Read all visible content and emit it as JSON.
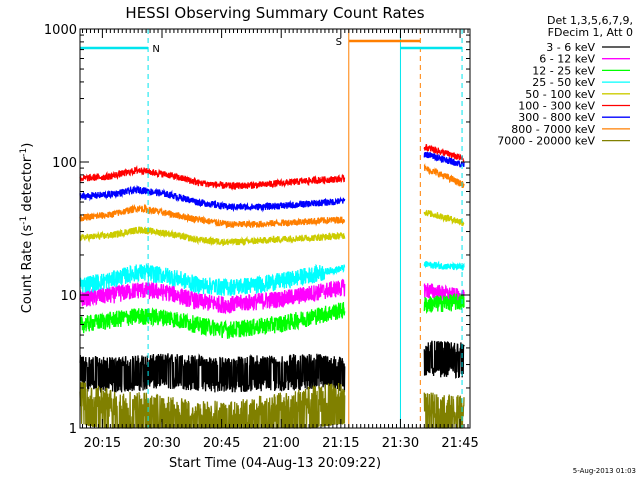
{
  "chart_data": {
    "type": "line",
    "title": "HESSI Observing Summary Count Rates",
    "xlabel": "Start Time (04-Aug-13 20:09:22)",
    "ylabel_main": "Count Rate (s",
    "ylabel_sup1": "-1",
    "ylabel_mid": " detector",
    "ylabel_sup2": "-1",
    "ylabel_end": ")",
    "footer": "5-Aug-2013 01:03",
    "y_scale": "log",
    "ylim": [
      1,
      1000
    ],
    "xlim": [
      "20:09:22",
      "21:47:30"
    ],
    "x_ticks": [
      "20:15",
      "20:30",
      "20:45",
      "21:00",
      "21:15",
      "21:30",
      "21:45"
    ],
    "y_ticks": [
      "1",
      "10",
      "100",
      "1000"
    ],
    "legend_header": [
      "Det 1,3,5,6,7,9,",
      "FDecim 1, Att 0"
    ],
    "flags": [
      {
        "label": "N",
        "color": "#00e5ee",
        "segments": [
          [
            "20:09:22",
            "20:26:30"
          ],
          [
            "21:30:00",
            "21:45:30"
          ]
        ]
      },
      {
        "label": "S",
        "color": "#ff7f00",
        "segments": [
          [
            "21:17:00",
            "21:35:00"
          ]
        ]
      }
    ],
    "vlines": [
      {
        "time": "20:26:30",
        "color": "#00e5ee",
        "style": "dashed"
      },
      {
        "time": "21:45:30",
        "color": "#00e5ee",
        "style": "dashed"
      },
      {
        "time": "21:30:00",
        "color": "#00e5ee",
        "style": "solid"
      },
      {
        "time": "21:17:00",
        "color": "#ff7f00",
        "style": "solid"
      },
      {
        "time": "21:35:00",
        "color": "#ff7f00",
        "style": "dashed"
      }
    ],
    "series": [
      {
        "name": "3 - 6 keV",
        "color": "#000000",
        "values": [
          [
            2.8,
            2.7,
            2.8,
            2.9,
            2.8,
            2.7,
            2.8,
            2.8,
            2.9,
            2.7
          ],
          [
            3.6,
            3.5
          ]
        ]
      },
      {
        "name": "6 - 12 keV",
        "color": "#ff00ff",
        "values": [
          [
            9.5,
            10.0,
            11.0,
            10.5,
            9.0,
            8.5,
            9.0,
            9.5,
            10.5,
            11.5
          ],
          [
            11.0,
            9.5
          ]
        ]
      },
      {
        "name": "12 - 25 keV",
        "color": "#00ff00",
        "values": [
          [
            6.0,
            6.5,
            7.0,
            6.8,
            6.0,
            5.5,
            5.8,
            6.2,
            7.0,
            7.8
          ],
          [
            8.5,
            9.0
          ]
        ]
      },
      {
        "name": "25 - 50 keV",
        "color": "#00ffff",
        "values": [
          [
            12.0,
            13.0,
            15.0,
            14.0,
            12.0,
            11.5,
            12.0,
            13.0,
            14.5,
            16.0
          ],
          [
            17.0,
            16.0
          ]
        ]
      },
      {
        "name": "50 - 100 keV",
        "color": "#cccc00",
        "values": [
          [
            27.0,
            28.0,
            31.0,
            29.0,
            26.0,
            25.0,
            25.5,
            26.5,
            27.0,
            28.0
          ],
          [
            42.0,
            35.0
          ]
        ]
      },
      {
        "name": "100 - 300 keV",
        "color": "#ff0000",
        "values": [
          [
            75.0,
            78.0,
            87.0,
            80.0,
            70.0,
            66.0,
            67.0,
            70.0,
            73.0,
            75.0
          ],
          [
            130.0,
            105.0
          ]
        ]
      },
      {
        "name": "300 - 800 keV",
        "color": "#0000ff",
        "values": [
          [
            55.0,
            57.0,
            62.0,
            57.0,
            50.0,
            46.0,
            46.0,
            47.0,
            49.0,
            51.0
          ],
          [
            115.0,
            95.0
          ]
        ]
      },
      {
        "name": "800 - 7000 keV",
        "color": "#ff7f00",
        "values": [
          [
            38.0,
            40.0,
            45.0,
            41.0,
            37.0,
            34.0,
            34.0,
            35.0,
            36.0,
            37.0
          ],
          [
            90.0,
            67.0
          ]
        ]
      },
      {
        "name": "7000 - 20000 keV",
        "color": "#808000",
        "values": [
          [
            1.8,
            1.6,
            1.5,
            1.4,
            1.3,
            1.3,
            1.4,
            1.5,
            1.7,
            1.8
          ],
          [
            1.5,
            1.4
          ]
        ]
      }
    ],
    "segments_time": [
      [
        "20:09:22",
        "21:16:00"
      ],
      [
        "21:36:00",
        "21:46:00"
      ]
    ],
    "grid": false,
    "legend_placement": "top-right outside"
  }
}
